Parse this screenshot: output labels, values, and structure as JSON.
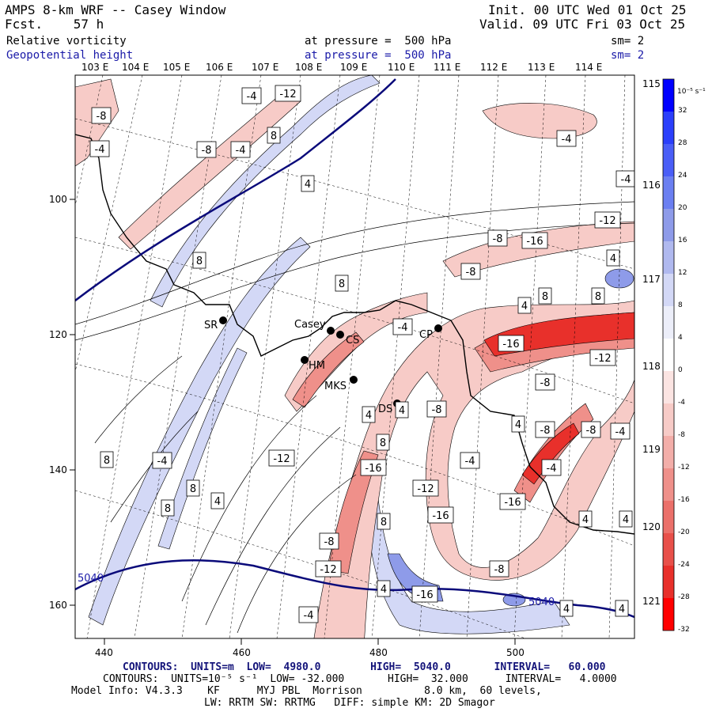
{
  "header": {
    "model": "AMPS 8-km WRF -- Casey Window",
    "forecast": "Fcst.    57 h",
    "init": "Init. 00 UTC Wed 01 Oct 25",
    "valid": "Valid. 09 UTC Fri 03 Oct 25",
    "field1": {
      "name": "Relative vorticity",
      "level": "at pressure =  500 hPa",
      "sm": "sm= 2"
    },
    "field2": {
      "name": "Geopotential height",
      "level": "at pressure =  500 hPa",
      "sm": "sm= 2"
    }
  },
  "top_lon_labels": [
    "103 E",
    "104 E",
    "105 E",
    "106 E",
    "107 E",
    "108 E",
    "109 E",
    "110 E",
    "111 E",
    "112 E",
    "113 E",
    "114 E"
  ],
  "right_lon_labels": [
    "115 E",
    "116 E",
    "117 E",
    "118 E",
    "119 E",
    "120 E",
    "121 E"
  ],
  "grid_x_labels": [
    "440",
    "460",
    "480",
    "500"
  ],
  "grid_y_labels": [
    "100",
    "120",
    "140",
    "160"
  ],
  "stations": [
    {
      "name": "SR"
    },
    {
      "name": "Casey"
    },
    {
      "name": "CS"
    },
    {
      "name": "CP"
    },
    {
      "name": "HM"
    },
    {
      "name": "MKS"
    },
    {
      "name": "DS"
    }
  ],
  "height_labels": [
    "5040",
    "5040"
  ],
  "contour_labels": [
    "-4",
    "-12",
    "-8",
    "-4",
    "-8",
    "-4",
    "8",
    "4",
    "-4",
    "-4",
    "-12",
    "-8",
    "-16",
    "4",
    "8",
    "-8",
    "8",
    "4",
    "8",
    "8",
    "-4",
    "-16",
    "-12",
    "-8",
    "4",
    "-8",
    "-4",
    "-12",
    "8",
    "4",
    "4",
    "-8",
    "-4",
    "8",
    "-4",
    "-16",
    "-4",
    "8",
    "8",
    "4",
    "-12",
    "-16",
    "-8",
    "-16",
    "-8",
    "8",
    "-12",
    "4",
    "4",
    "4",
    "-8",
    "-16",
    "4",
    "4",
    "-4"
  ],
  "colorbar": {
    "units": "10⁻⁵ s⁻¹",
    "ticks": [
      "32",
      "28",
      "24",
      "20",
      "16",
      "12",
      "8",
      "4",
      "0",
      "-4",
      "-8",
      "-12",
      "-16",
      "-20",
      "-24",
      "-28",
      "-32"
    ],
    "colors": [
      "#0000ff",
      "#2b3ffb",
      "#4a5ef7",
      "#6b7ff1",
      "#8e9be9",
      "#b0b9ef",
      "#d3d8f6",
      "#eceef9",
      "#ffffff",
      "#fbe4e2",
      "#f7cbc7",
      "#f3aea9",
      "#ef908a",
      "#eb706a",
      "#e8504a",
      "#e8302b",
      "#ff0000"
    ]
  },
  "footer": {
    "line1": "CONTOURS:  UNITS=m  LOW=  4980.0        HIGH=  5040.0       INTERVAL=   60.000",
    "line2": "CONTOURS:  UNITS=10⁻⁵ s⁻¹  LOW= -32.000       HIGH=  32.000      INTERVAL=   4.0000",
    "line3": "Model Info: V4.3.3    KF      MYJ PBL  Morrison          8.0 km,  60 levels,",
    "line4": "LW: RRTM SW: RRTMG   DIFF: simple KM: 2D Smagor"
  }
}
